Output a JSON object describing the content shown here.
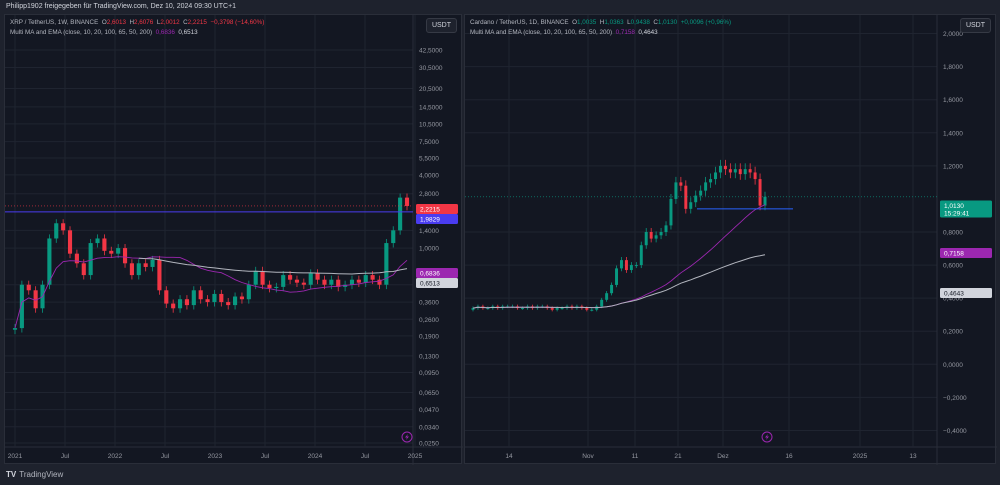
{
  "header": {
    "share_line": "Philipp1902 freigegeben für TradingView.com, Dez 10, 2024 09:30 UTC+1"
  },
  "footer": {
    "brand": "TradingView",
    "logo_glyph": "TV"
  },
  "colors": {
    "background": "#131722",
    "frame": "#1e222d",
    "grid": "#1f2430",
    "up": "#089981",
    "down": "#f23645",
    "ma_purple": "#9c27b0",
    "ma_white": "#b2b5be",
    "level_line": "#4a3cf0",
    "level_line_blue": "#2962ff"
  },
  "chart_data": [
    {
      "type": "candlestick",
      "title": "XRP / TetherUS, 1W, BINANCE",
      "ohlc": {
        "open_label": "O",
        "open": "2,6013",
        "high_label": "H",
        "high": "2,6076",
        "low_label": "L",
        "low": "2,0012",
        "close_label": "C",
        "close": "2,2215",
        "change": "−0,3798 (−14,60%)"
      },
      "indicator": {
        "label": "Multi MA and EMA (close, 10, 20, 100, 65, 50, 200)",
        "value1": "0,6836",
        "value2": "0,6513"
      },
      "currency": "USDT",
      "scale": "log",
      "y_ticks": [
        "42,5000",
        "30,5000",
        "20,5000",
        "14,5000",
        "10,5000",
        "7,5000",
        "5,5000",
        "4,0000",
        "2,8000",
        "1,4000",
        "1,0000",
        "0,5000",
        "0,3600",
        "0,2600",
        "0,1900",
        "0,1300",
        "0,0950",
        "0,0650",
        "0,0470",
        "0,0340",
        "0,0250"
      ],
      "x_ticks": [
        "2021",
        "Jul",
        "2022",
        "Jul",
        "2023",
        "Jul",
        "2024",
        "Jul",
        "2025"
      ],
      "price_labels": [
        {
          "text": "2,2215",
          "color": "#f23645"
        },
        {
          "text": "1,9829",
          "color": "#4a3cf0"
        },
        {
          "text": "0,6836",
          "color": "#9c27b0"
        },
        {
          "text": "0,6513",
          "color": "#d1d4dc"
        }
      ],
      "horizontal_level": 1.9829,
      "last_close": 2.2215,
      "approx_weekly_closes": [
        0.22,
        0.5,
        0.45,
        0.32,
        0.5,
        1.2,
        1.6,
        1.4,
        0.9,
        0.75,
        0.6,
        1.1,
        1.2,
        0.95,
        0.9,
        1.0,
        0.75,
        0.6,
        0.75,
        0.7,
        0.8,
        0.45,
        0.35,
        0.32,
        0.38,
        0.34,
        0.45,
        0.38,
        0.36,
        0.42,
        0.36,
        0.34,
        0.4,
        0.38,
        0.5,
        0.65,
        0.5,
        0.47,
        0.48,
        0.6,
        0.55,
        0.52,
        0.5,
        0.62,
        0.55,
        0.5,
        0.55,
        0.48,
        0.5,
        0.55,
        0.52,
        0.6,
        0.55,
        0.5,
        1.1,
        1.4,
        2.6,
        2.22
      ]
    },
    {
      "type": "candlestick",
      "title": "Cardano / TetherUS, 1D, BINANCE",
      "ohlc": {
        "open_label": "O",
        "open": "1,0035",
        "high_label": "H",
        "high": "1,0363",
        "low_label": "L",
        "low": "0,9438",
        "close_label": "C",
        "close": "1,0130",
        "change": "+0,0096 (+0,96%)"
      },
      "indicator": {
        "label": "Multi MA and EMA (close, 10, 20, 100, 65, 50, 200)",
        "value1": "0,7158",
        "value2": "0,4643"
      },
      "currency": "USDT",
      "scale": "linear",
      "y_ticks": [
        "2,0000",
        "1,8000",
        "1,6000",
        "1,4000",
        "1,2000",
        "0,8000",
        "0,6000",
        "0,4000",
        "0,2000",
        "0,0000",
        "−0,2000",
        "−0,4000"
      ],
      "y_range": [
        -0.5,
        2.1
      ],
      "x_ticks": [
        "14",
        "Nov",
        "11",
        "21",
        "Dez",
        "16",
        "2025",
        "13"
      ],
      "price_labels": [
        {
          "text": "1,0130",
          "sub": "15:29:41",
          "color": "#089981"
        },
        {
          "text": "0,7158",
          "color": "#9c27b0"
        },
        {
          "text": "0,4643",
          "color": "#d1d4dc"
        }
      ],
      "horizontal_level": 0.94,
      "last_close": 1.013,
      "approx_daily_closes": [
        0.34,
        0.35,
        0.34,
        0.34,
        0.35,
        0.34,
        0.35,
        0.35,
        0.35,
        0.34,
        0.34,
        0.35,
        0.34,
        0.35,
        0.35,
        0.34,
        0.33,
        0.34,
        0.34,
        0.35,
        0.34,
        0.35,
        0.34,
        0.33,
        0.33,
        0.35,
        0.39,
        0.43,
        0.48,
        0.58,
        0.63,
        0.57,
        0.6,
        0.6,
        0.72,
        0.8,
        0.76,
        0.78,
        0.8,
        0.84,
        1.0,
        1.1,
        1.08,
        0.94,
        0.98,
        1.02,
        1.05,
        1.1,
        1.12,
        1.16,
        1.2,
        1.18,
        1.16,
        1.18,
        1.15,
        1.18,
        1.16,
        1.12,
        0.96,
        1.013
      ]
    }
  ]
}
